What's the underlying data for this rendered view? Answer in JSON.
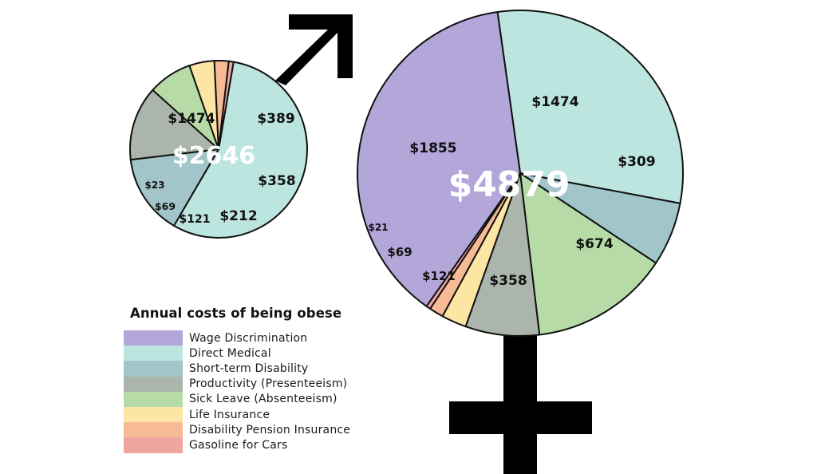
{
  "chart_data": [
    {
      "type": "pie",
      "title": "Men",
      "total_label": "$2646",
      "slices": [
        {
          "category": "Direct Medical",
          "value": 1474,
          "label": "$1474"
        },
        {
          "category": "Short-term Disability",
          "value": 389,
          "label": "$389"
        },
        {
          "category": "Productivity (Presenteeism)",
          "value": 358,
          "label": "$358"
        },
        {
          "category": "Sick Leave (Absenteeism)",
          "value": 212,
          "label": "$212"
        },
        {
          "category": "Life Insurance",
          "value": 121,
          "label": "$121"
        },
        {
          "category": "Disability Pension Insurance",
          "value": 69,
          "label": "$69"
        },
        {
          "category": "Gasoline for Cars",
          "value": 23,
          "label": "$23"
        }
      ]
    },
    {
      "type": "pie",
      "title": "Women",
      "total_label": "$4879",
      "slices": [
        {
          "category": "Direct Medical",
          "value": 1474,
          "label": "$1474"
        },
        {
          "category": "Short-term Disability",
          "value": 309,
          "label": "$309"
        },
        {
          "category": "Sick Leave (Absenteeism)",
          "value": 674,
          "label": "$674"
        },
        {
          "category": "Productivity (Presenteeism)",
          "value": 358,
          "label": "$358"
        },
        {
          "category": "Life Insurance",
          "value": 121,
          "label": "$121"
        },
        {
          "category": "Disability Pension Insurance",
          "value": 69,
          "label": "$69"
        },
        {
          "category": "Gasoline for Cars",
          "value": 21,
          "label": "$21"
        },
        {
          "category": "Wage Discrimination",
          "value": 1855,
          "label": "$1855"
        }
      ]
    }
  ],
  "legend": {
    "title": "Annual costs of being obese",
    "items": [
      {
        "label": "Wage Discrimination",
        "color": "#b3a6d9"
      },
      {
        "label": "Direct Medical",
        "color": "#bde5df"
      },
      {
        "label": "Short-term Disability",
        "color": "#a2c5ca"
      },
      {
        "label": "Productivity (Presenteeism)",
        "color": "#abb5ab"
      },
      {
        "label": "Sick Leave (Absenteeism)",
        "color": "#b6dba7"
      },
      {
        "label": "Life Insurance",
        "color": "#fde6a4"
      },
      {
        "label": "Disability Pension Insurance",
        "color": "#f6bb95"
      },
      {
        "label": "Gasoline for Cars",
        "color": "#f0a4a0"
      }
    ]
  },
  "symbols": {
    "male": "male-symbol-icon",
    "female": "female-symbol-icon"
  }
}
